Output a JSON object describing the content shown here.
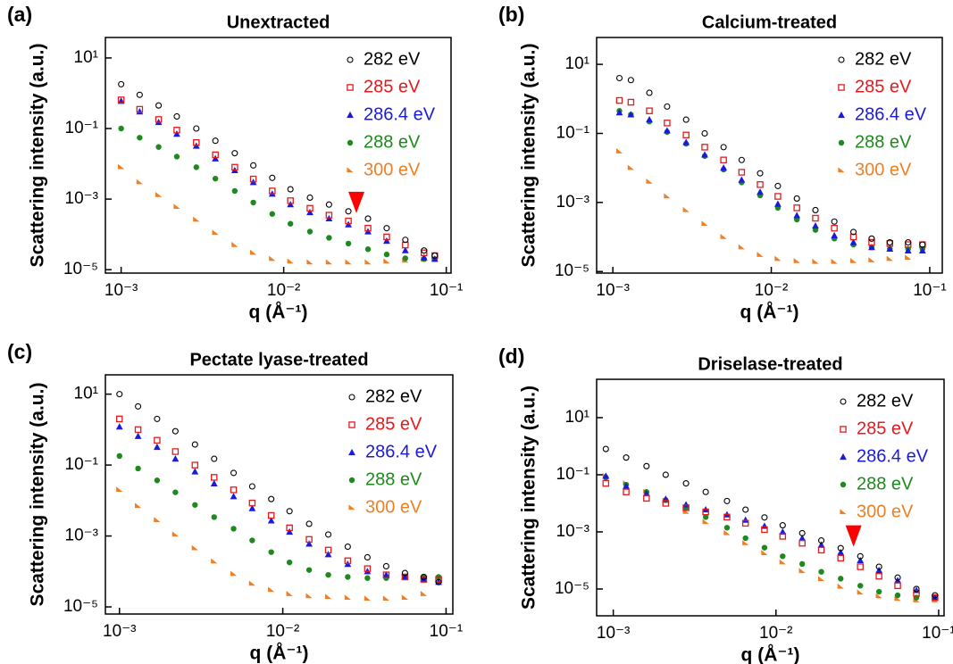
{
  "chart_data": [
    {
      "type": "scatter",
      "panel_label": "(a)",
      "title": "Unextracted",
      "x_label": "q (Å⁻¹)",
      "y_label": "Scattering intensity (a.u.)",
      "log_x": true,
      "log_y": true,
      "legend": "upper right",
      "xlim": [
        0.0008,
        0.107
      ],
      "ylim": [
        8e-06,
        38
      ],
      "xticks": [
        {
          "value": 0.001,
          "label": "10⁻³"
        },
        {
          "value": 0.01,
          "label": "10⁻²"
        },
        {
          "value": 0.1,
          "label": "10⁻¹"
        }
      ],
      "yticks": [
        {
          "value": 1e-05,
          "label": "10⁻⁵"
        },
        {
          "value": 0.001,
          "label": "10⁻³"
        },
        {
          "value": 0.1,
          "label": "10⁻¹"
        },
        {
          "value": 10,
          "label": "10¹"
        }
      ],
      "x": [
        0.001,
        0.0013,
        0.0017,
        0.0022,
        0.0029,
        0.0038,
        0.005,
        0.0065,
        0.0085,
        0.011,
        0.0145,
        0.019,
        0.025,
        0.033,
        0.043,
        0.056,
        0.073,
        0.085
      ],
      "annotations": [
        {
          "type": "arrow",
          "x": 0.028,
          "y": 0.0004,
          "color": "#ff0000"
        }
      ],
      "series": [
        {
          "name": "282 eV",
          "color": "#000000",
          "marker": "open-circle",
          "values": [
            1.8,
            0.9,
            0.45,
            0.22,
            0.1,
            0.045,
            0.02,
            0.009,
            0.004,
            0.0019,
            0.0011,
            0.0007,
            0.00045,
            0.00028,
            0.00015,
            7e-05,
            3.5e-05,
            2.5e-05
          ]
        },
        {
          "name": "285 eV",
          "color": "#e41a1c",
          "marker": "open-square",
          "values": [
            0.65,
            0.35,
            0.18,
            0.09,
            0.04,
            0.018,
            0.008,
            0.0037,
            0.0017,
            0.0009,
            0.00055,
            0.00035,
            0.00024,
            0.00015,
            8.5e-05,
            5e-05,
            3e-05,
            2.5e-05
          ]
        },
        {
          "name": "286.4 eV",
          "color": "#1a1adf",
          "marker": "triangle",
          "values": [
            0.6,
            0.3,
            0.15,
            0.07,
            0.032,
            0.014,
            0.0065,
            0.003,
            0.0014,
            0.0007,
            0.00042,
            0.00028,
            0.00019,
            0.00012,
            6.5e-05,
            3.5e-05,
            2.2e-05,
            2e-05
          ]
        },
        {
          "name": "288 eV",
          "color": "#1e8a1e",
          "marker": "dot",
          "values": [
            0.1,
            0.055,
            0.03,
            0.016,
            0.008,
            0.0038,
            0.0017,
            0.0008,
            0.00038,
            0.0002,
            0.00012,
            8e-05,
            5.5e-05,
            3.8e-05,
            2.7e-05,
            2.1e-05,
            2e-05,
            2e-05
          ]
        },
        {
          "name": "300 eV",
          "color": "#f07f24",
          "marker": "wedge",
          "values": [
            0.008,
            0.003,
            0.0013,
            0.0006,
            0.00026,
            0.00011,
            5e-05,
            3e-05,
            2e-05,
            1.7e-05,
            1.6e-05,
            1.6e-05,
            1.6e-05,
            1.6e-05,
            1.7e-05,
            1.8e-05,
            1.9e-05,
            2e-05
          ]
        }
      ]
    },
    {
      "type": "scatter",
      "panel_label": "(b)",
      "title": "Calcium-treated",
      "x_label": "q (Å⁻¹)",
      "y_label": "Scattering intensity (a.u.)",
      "log_x": true,
      "log_y": true,
      "legend": "upper right",
      "xlim": [
        0.00079,
        0.12
      ],
      "ylim": [
        9e-06,
        60
      ],
      "xticks": [
        {
          "value": 0.001,
          "label": "10⁻³"
        },
        {
          "value": 0.01,
          "label": "10⁻²"
        },
        {
          "value": 0.1,
          "label": "10⁻¹"
        }
      ],
      "yticks": [
        {
          "value": 1e-05,
          "label": "10⁻⁵"
        },
        {
          "value": 0.001,
          "label": "10⁻³"
        },
        {
          "value": 0.1,
          "label": "10⁻¹"
        },
        {
          "value": 10,
          "label": "10¹"
        }
      ],
      "x": [
        0.0011,
        0.0013,
        0.0017,
        0.0022,
        0.0029,
        0.0038,
        0.005,
        0.0065,
        0.0085,
        0.011,
        0.0145,
        0.019,
        0.025,
        0.033,
        0.043,
        0.056,
        0.073,
        0.09
      ],
      "series": [
        {
          "name": "282 eV",
          "color": "#000000",
          "marker": "open-circle",
          "values": [
            4,
            3.5,
            1.5,
            0.6,
            0.25,
            0.1,
            0.04,
            0.017,
            0.007,
            0.003,
            0.0013,
            0.0006,
            0.00028,
            0.00014,
            9e-05,
            7e-05,
            7e-05,
            6e-05
          ]
        },
        {
          "name": "285 eV",
          "color": "#e41a1c",
          "marker": "open-square",
          "values": [
            0.9,
            0.8,
            0.45,
            0.2,
            0.09,
            0.04,
            0.017,
            0.0075,
            0.0033,
            0.0015,
            0.0007,
            0.00035,
            0.00018,
            0.0001,
            7e-05,
            6.5e-05,
            6e-05,
            6e-05
          ]
        },
        {
          "name": "286.4 eV",
          "color": "#1a1adf",
          "marker": "triangle",
          "values": [
            0.4,
            0.35,
            0.25,
            0.12,
            0.055,
            0.024,
            0.01,
            0.0045,
            0.002,
            0.0009,
            0.00042,
            0.00021,
            0.00011,
            7e-05,
            5e-05,
            4.5e-05,
            4e-05,
            4e-05
          ]
        },
        {
          "name": "288 eV",
          "color": "#1e8a1e",
          "marker": "dot",
          "values": [
            0.45,
            0.35,
            0.22,
            0.11,
            0.05,
            0.022,
            0.009,
            0.0038,
            0.0016,
            0.0007,
            0.00032,
            0.00016,
            9e-05,
            6e-05,
            5e-05,
            4.5e-05,
            4.5e-05,
            4.5e-05
          ]
        },
        {
          "name": "300 eV",
          "color": "#f07f24",
          "marker": "wedge",
          "values": [
            0.03,
            0.01,
            0.004,
            0.0015,
            0.0006,
            0.00024,
            0.0001,
            5e-05,
            3e-05,
            2.3e-05,
            2e-05,
            1.9e-05,
            1.9e-05,
            2e-05,
            2.1e-05,
            2.3e-05,
            2.5e-05,
            null
          ]
        }
      ]
    },
    {
      "type": "scatter",
      "panel_label": "(c)",
      "title": "Pectate lyase-treated",
      "x_label": "q (Å⁻¹)",
      "y_label": "Scattering intensity (a.u.)",
      "log_x": true,
      "log_y": true,
      "legend": "upper right",
      "xlim": [
        0.00082,
        0.11
      ],
      "ylim": [
        6.3e-06,
        35
      ],
      "xticks": [
        {
          "value": 0.001,
          "label": "10⁻³"
        },
        {
          "value": 0.01,
          "label": "10⁻²"
        },
        {
          "value": 0.1,
          "label": "10⁻¹"
        }
      ],
      "yticks": [
        {
          "value": 1e-05,
          "label": "10⁻⁵"
        },
        {
          "value": 0.001,
          "label": "10⁻³"
        },
        {
          "value": 0.1,
          "label": "10⁻¹"
        },
        {
          "value": 10,
          "label": "10¹"
        }
      ],
      "x": [
        0.001,
        0.0013,
        0.0017,
        0.0022,
        0.0029,
        0.0038,
        0.005,
        0.0065,
        0.0085,
        0.011,
        0.0145,
        0.019,
        0.025,
        0.033,
        0.043,
        0.056,
        0.073,
        0.09
      ],
      "series": [
        {
          "name": "282 eV",
          "color": "#000000",
          "marker": "open-circle",
          "values": [
            10,
            4.5,
            2,
            0.9,
            0.38,
            0.15,
            0.06,
            0.025,
            0.011,
            0.005,
            0.0022,
            0.0011,
            0.0005,
            0.00025,
            0.00014,
            9e-05,
            7e-05,
            5e-05
          ]
        },
        {
          "name": "285 eV",
          "color": "#e41a1c",
          "marker": "open-square",
          "values": [
            2,
            1,
            0.5,
            0.24,
            0.1,
            0.045,
            0.02,
            0.0085,
            0.0038,
            0.0017,
            0.0008,
            0.0004,
            0.0002,
            0.00012,
            8e-05,
            7e-05,
            6e-05,
            6e-05
          ]
        },
        {
          "name": "286.4 eV",
          "color": "#1a1adf",
          "marker": "triangle",
          "values": [
            1.2,
            0.65,
            0.32,
            0.15,
            0.065,
            0.03,
            0.013,
            0.006,
            0.0027,
            0.0013,
            0.0006,
            0.0003,
            0.00016,
            0.0001,
            8e-05,
            7e-05,
            6e-05,
            5e-05
          ]
        },
        {
          "name": "288 eV",
          "color": "#1e8a1e",
          "marker": "dot",
          "values": [
            0.18,
            0.08,
            0.037,
            0.017,
            0.0075,
            0.0034,
            0.0016,
            0.00075,
            0.00035,
            0.00018,
            0.00011,
            8e-05,
            7e-05,
            6.5e-05,
            6.5e-05,
            7e-05,
            7e-05,
            7e-05
          ]
        },
        {
          "name": "300 eV",
          "color": "#f07f24",
          "marker": "wedge",
          "values": [
            0.02,
            0.007,
            0.0028,
            0.0011,
            0.00045,
            0.00019,
            8.5e-05,
            4.5e-05,
            3e-05,
            2.3e-05,
            2e-05,
            1.9e-05,
            1.8e-05,
            1.7e-05,
            1.7e-05,
            1.8e-05,
            2.3e-05,
            null
          ]
        }
      ]
    },
    {
      "type": "scatter",
      "panel_label": "(d)",
      "title": "Driselase-treated",
      "x_label": "q (Å⁻¹)",
      "y_label": "Scattering intensity (a.u.)",
      "log_x": true,
      "log_y": true,
      "legend": "upper right",
      "xlim": [
        0.00079,
        0.108
      ],
      "ylim": [
        1.15e-06,
        220
      ],
      "xticks": [
        {
          "value": 0.001,
          "label": "10⁻³"
        },
        {
          "value": 0.01,
          "label": "10⁻²"
        },
        {
          "value": 0.1,
          "label": "10⁻¹"
        }
      ],
      "yticks": [
        {
          "value": 1e-05,
          "label": "10⁻⁵"
        },
        {
          "value": 0.001,
          "label": "10⁻³"
        },
        {
          "value": 0.1,
          "label": "10⁻¹"
        },
        {
          "value": 10,
          "label": "10¹"
        }
      ],
      "x": [
        0.0009,
        0.0012,
        0.0016,
        0.0021,
        0.0028,
        0.0037,
        0.005,
        0.0065,
        0.0085,
        0.011,
        0.0145,
        0.019,
        0.025,
        0.033,
        0.043,
        0.056,
        0.073,
        0.095
      ],
      "annotations": [
        {
          "type": "arrow",
          "x": 0.03,
          "y": 0.0003,
          "color": "#ff0000"
        }
      ],
      "series": [
        {
          "name": "282 eV",
          "color": "#000000",
          "marker": "open-circle",
          "values": [
            0.8,
            0.4,
            0.2,
            0.1,
            0.05,
            0.025,
            0.012,
            0.006,
            0.0032,
            0.0017,
            0.0009,
            0.0005,
            0.00027,
            0.00014,
            6e-05,
            2.5e-05,
            1e-05,
            6e-06
          ]
        },
        {
          "name": "285 eV",
          "color": "#e41a1c",
          "marker": "open-square",
          "values": [
            0.05,
            0.025,
            0.015,
            0.01,
            0.007,
            0.005,
            0.0033,
            0.002,
            0.0012,
            0.0007,
            0.0004,
            0.00023,
            0.00012,
            6e-05,
            2.8e-05,
            1.3e-05,
            7e-06,
            5e-06
          ]
        },
        {
          "name": "286.4 eV",
          "color": "#1a1adf",
          "marker": "triangle",
          "values": [
            0.09,
            0.04,
            0.022,
            0.014,
            0.009,
            0.006,
            0.004,
            0.0026,
            0.0016,
            0.001,
            0.0006,
            0.00035,
            0.00019,
            0.0001,
            4.5e-05,
            2e-05,
            9e-06,
            5e-06
          ]
        },
        {
          "name": "288 eV",
          "color": "#1e8a1e",
          "marker": "dot",
          "values": [
            0.08,
            0.045,
            0.025,
            0.013,
            0.007,
            0.0033,
            0.0014,
            0.0006,
            0.00028,
            0.00014,
            7.5e-05,
            4e-05,
            2.3e-05,
            1.3e-05,
            8e-06,
            6e-06,
            5e-06,
            5e-06
          ]
        },
        {
          "name": "300 eV",
          "color": "#f07f24",
          "marker": "wedge",
          "values": [
            0.09,
            0.05,
            0.025,
            0.012,
            0.005,
            0.0022,
            0.0009,
            0.0004,
            0.00018,
            8.5e-05,
            4.2e-05,
            2.2e-05,
            1.2e-05,
            7.5e-06,
            5.5e-06,
            4.5e-06,
            4e-06,
            4e-06
          ]
        }
      ]
    }
  ]
}
